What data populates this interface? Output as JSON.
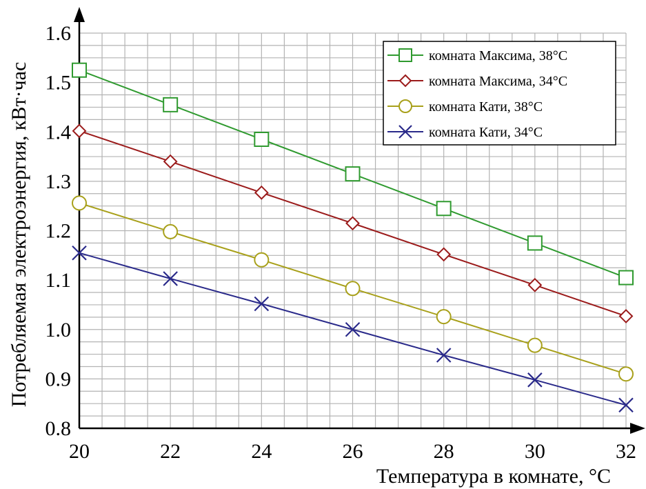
{
  "chart_data": {
    "type": "line",
    "xlabel": "Температура в комнате, °С",
    "ylabel": "Потребляемая электроэнергия, кВт·час",
    "x": [
      20,
      22,
      24,
      26,
      28,
      30,
      32
    ],
    "xlim": [
      20,
      32
    ],
    "ylim": [
      0.8,
      1.6
    ],
    "x_ticks": [
      "20",
      "22",
      "24",
      "26",
      "28",
      "30",
      "32"
    ],
    "y_ticks": [
      "0.8",
      "0.9",
      "1.0",
      "1.1",
      "1.2",
      "1.3",
      "1.4",
      "1.5",
      "1.6"
    ],
    "grid": true,
    "legend_position": "top-right",
    "series": [
      {
        "name": "комната Максима, 38°С",
        "color": "#2f9a2f",
        "marker": "square",
        "values": [
          1.525,
          1.455,
          1.385,
          1.315,
          1.245,
          1.175,
          1.105
        ]
      },
      {
        "name": "комната Максима, 34°С",
        "color": "#9b1b1b",
        "marker": "diamond",
        "values": [
          1.402,
          1.34,
          1.277,
          1.215,
          1.152,
          1.09,
          1.027
        ]
      },
      {
        "name": "комната Кати, 38°С",
        "color": "#a8a01a",
        "marker": "circle",
        "values": [
          1.256,
          1.198,
          1.141,
          1.083,
          1.026,
          0.968,
          0.91
        ]
      },
      {
        "name": "комната Кати, 34°С",
        "color": "#2a2a8a",
        "marker": "cross",
        "values": [
          1.155,
          1.103,
          1.052,
          1.0,
          0.948,
          0.898,
          0.847
        ]
      }
    ]
  }
}
